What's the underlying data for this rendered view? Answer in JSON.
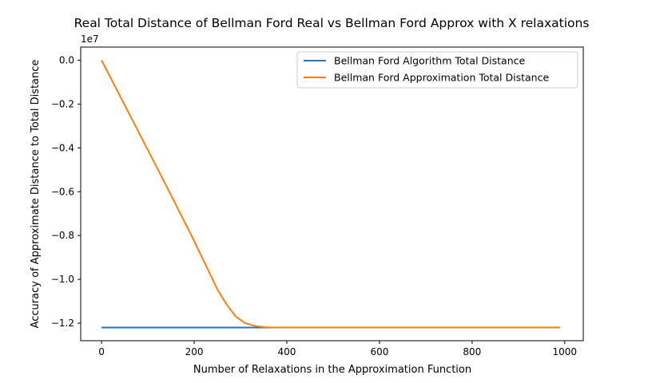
{
  "chart_data": {
    "type": "line",
    "title": "Real Total Distance of Bellman Ford Real vs Bellman Ford Approx with X relaxations",
    "xlabel": "Number of Relaxations in the Approximation Function",
    "ylabel": "Accuracy of Approximate Distance to Total Distance",
    "y_offset_label": "1e7",
    "xlim": [
      -45,
      1040
    ],
    "ylim": [
      -12.8,
      0.6
    ],
    "y_scale_note": "values in units of 1e6 (tick labels shown in units of 1e7)",
    "x_ticks": [
      0,
      200,
      400,
      600,
      800,
      1000
    ],
    "x_tick_labels": [
      "0",
      "200",
      "400",
      "600",
      "800",
      "1000"
    ],
    "y_ticks": [
      0,
      -2,
      -4,
      -6,
      -8,
      -10,
      -12
    ],
    "y_tick_labels": [
      "0.0",
      "−0.2",
      "−0.4",
      "−0.6",
      "−0.8",
      "−1.0",
      "−1.2"
    ],
    "legend_position": "top-right",
    "series": [
      {
        "name": "Bellman Ford Algorithm Total Distance",
        "color": "#1f77b4",
        "x": [
          0,
          990
        ],
        "y": [
          -12.2,
          -12.2
        ]
      },
      {
        "name": "Bellman Ford Approximation Total Distance",
        "color": "#ff7f0e",
        "x": [
          0,
          50,
          100,
          150,
          200,
          250,
          270,
          290,
          310,
          330,
          350,
          370,
          400,
          600,
          800,
          990
        ],
        "y": [
          0,
          -2.05,
          -4.1,
          -6.15,
          -8.25,
          -10.45,
          -11.15,
          -11.7,
          -12.0,
          -12.12,
          -12.18,
          -12.2,
          -12.2,
          -12.2,
          -12.2,
          -12.2
        ]
      }
    ]
  }
}
